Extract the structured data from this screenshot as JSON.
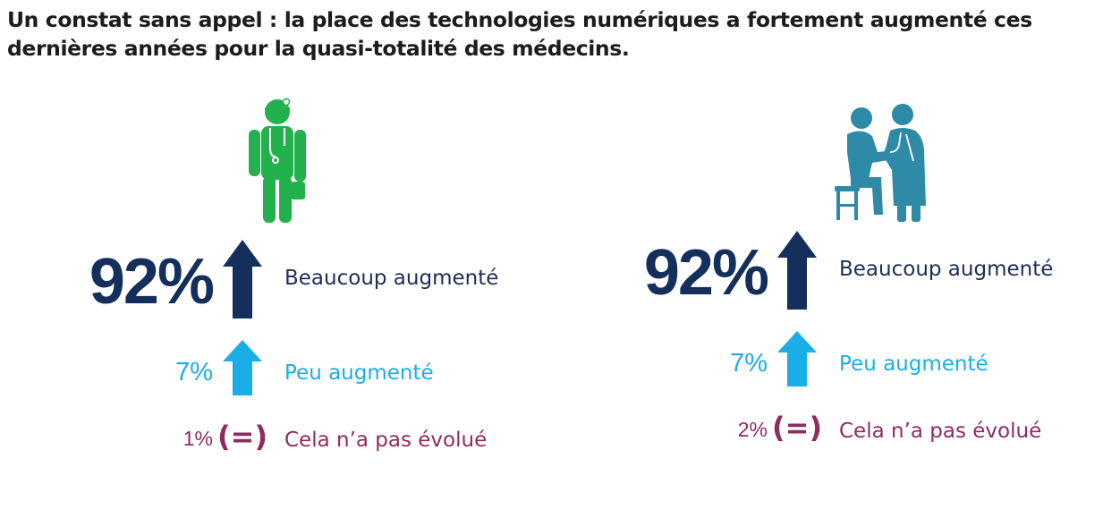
{
  "title": "Un constat sans appel : la place des technologies numériques a fortement augmenté ces dernières années pour la quasi-totalité des médecins.",
  "colors": {
    "beaucoup": "#152f5c",
    "peu": "#1aaee8",
    "stable": "#8e2c5f",
    "doctor_icon": "#22b14c",
    "consult_icon": "#2e8aa6"
  },
  "icons": {
    "left": "doctor-stethoscope-icon",
    "right": "doctor-patient-consultation-icon"
  },
  "chart_data": [
    {
      "type": "table",
      "categories": [
        "Beaucoup augmenté",
        "Peu augmenté",
        "Cela n’a pas évolué"
      ],
      "values": [
        92,
        7,
        1
      ],
      "value_labels": [
        "92%",
        "7%",
        "1%"
      ],
      "symbols": [
        "up-arrow-dark",
        "up-arrow-light",
        "equals-paren"
      ]
    },
    {
      "type": "table",
      "categories": [
        "Beaucoup augmenté",
        "Peu augmenté",
        "Cela n’a pas évolué"
      ],
      "values": [
        92,
        7,
        2
      ],
      "value_labels": [
        "92%",
        "7%",
        "2%"
      ],
      "symbols": [
        "up-arrow-dark",
        "up-arrow-light",
        "equals-paren"
      ]
    }
  ]
}
